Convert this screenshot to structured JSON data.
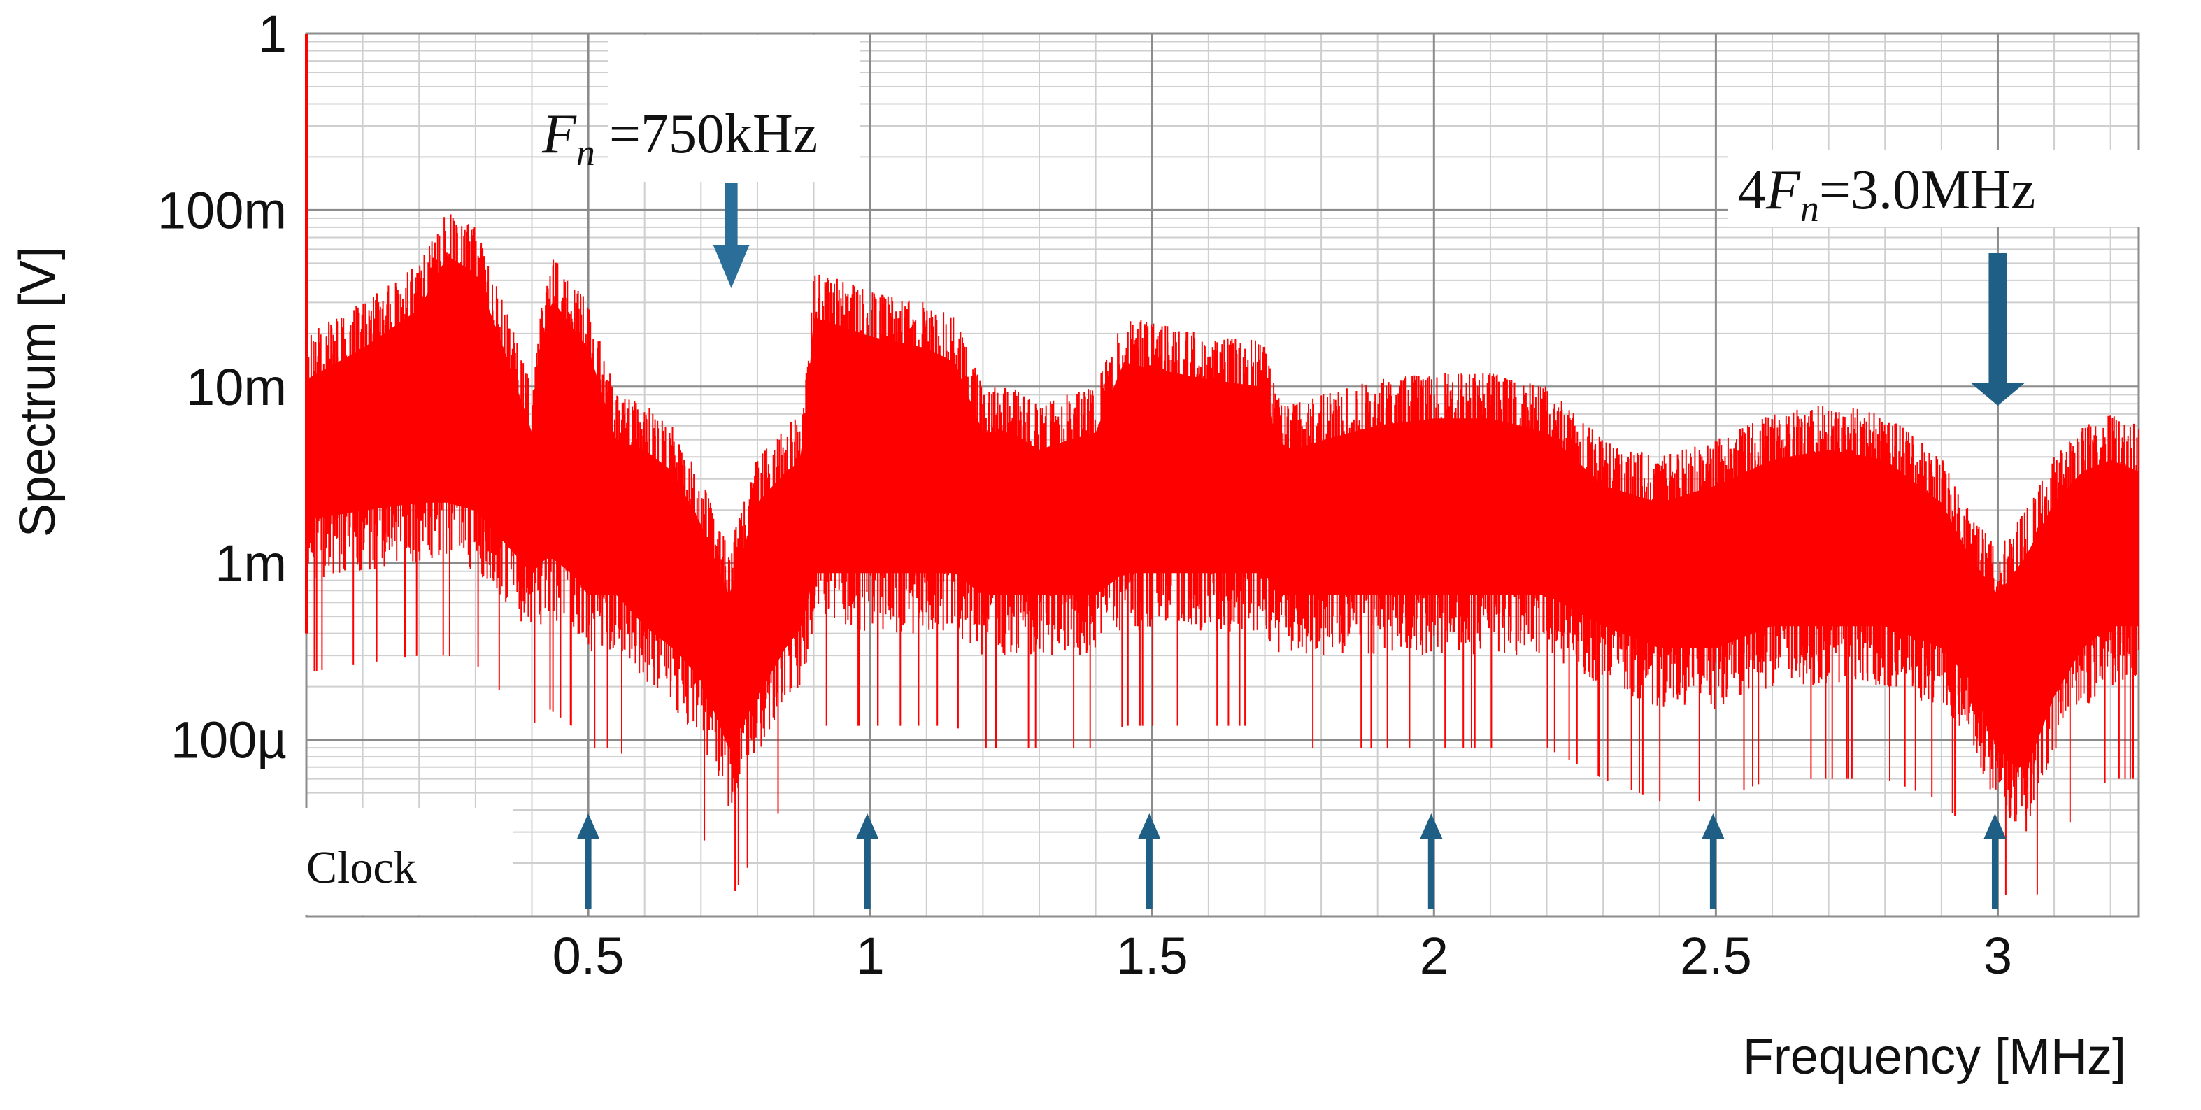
{
  "chart_data": {
    "type": "line",
    "title": "",
    "xlabel": "Frequency [MHz]",
    "ylabel": "Spectrum [V]",
    "x_range": [
      0,
      3.25
    ],
    "y_range": [
      1e-05,
      1
    ],
    "y_scale": "log",
    "grid": true,
    "x_ticks": [
      {
        "value": 0.5,
        "label": "0.5"
      },
      {
        "value": 1,
        "label": "1"
      },
      {
        "value": 1.5,
        "label": "1.5"
      },
      {
        "value": 2,
        "label": "2"
      },
      {
        "value": 2.5,
        "label": "2.5"
      },
      {
        "value": 3,
        "label": "3"
      }
    ],
    "y_ticks": [
      {
        "value": 1,
        "label": "1"
      },
      {
        "value": 0.1,
        "label": "100m"
      },
      {
        "value": 0.01,
        "label": "10m"
      },
      {
        "value": 0.001,
        "label": "1m"
      },
      {
        "value": 0.0001,
        "label": "100µ"
      }
    ],
    "series": [
      {
        "color": "#ff0000",
        "envelope_x": [
          0,
          0.1,
          0.2,
          0.25,
          0.3,
          0.35,
          0.4,
          0.43,
          0.47,
          0.5,
          0.55,
          0.6,
          0.65,
          0.7,
          0.75,
          0.8,
          0.85,
          0.88,
          0.9,
          0.95,
          1.0,
          1.1,
          1.15,
          1.2,
          1.25,
          1.3,
          1.35,
          1.4,
          1.45,
          1.5,
          1.6,
          1.7,
          1.72,
          1.75,
          1.8,
          1.9,
          2.0,
          2.1,
          2.2,
          2.3,
          2.4,
          2.5,
          2.6,
          2.7,
          2.8,
          2.9,
          2.95,
          3.0,
          3.05,
          3.1,
          3.15,
          3.2,
          3.25
        ],
        "envelope_upper": [
          0.02,
          0.03,
          0.05,
          0.1,
          0.08,
          0.03,
          0.01,
          0.06,
          0.04,
          0.03,
          0.009,
          0.008,
          0.006,
          0.003,
          0.0012,
          0.004,
          0.006,
          0.007,
          0.045,
          0.04,
          0.035,
          0.03,
          0.025,
          0.01,
          0.01,
          0.008,
          0.009,
          0.01,
          0.025,
          0.023,
          0.02,
          0.018,
          0.009,
          0.008,
          0.009,
          0.011,
          0.012,
          0.012,
          0.01,
          0.005,
          0.004,
          0.005,
          0.007,
          0.008,
          0.007,
          0.004,
          0.002,
          0.0012,
          0.002,
          0.004,
          0.006,
          0.007,
          0.006
        ],
        "envelope_lower": [
          0.0008,
          0.0009,
          0.001,
          0.001,
          0.0009,
          0.0006,
          0.0004,
          0.0005,
          0.0004,
          0.0003,
          0.0003,
          0.0002,
          0.00015,
          0.0001,
          4e-05,
          8e-05,
          0.00015,
          0.0002,
          0.0004,
          0.0004,
          0.0004,
          0.0004,
          0.0004,
          0.0003,
          0.0003,
          0.0003,
          0.0003,
          0.0003,
          0.0004,
          0.0004,
          0.0004,
          0.0004,
          0.0003,
          0.0003,
          0.0003,
          0.0003,
          0.0003,
          0.0003,
          0.0003,
          0.0002,
          0.00015,
          0.00015,
          0.0002,
          0.0002,
          0.0002,
          0.00015,
          0.0001,
          4e-05,
          3e-05,
          8e-05,
          0.00015,
          0.0002,
          0.0002
        ]
      }
    ],
    "annotations": [
      {
        "type": "arrow-down",
        "x": 0.75,
        "label_main": "F",
        "label_sub": "n",
        "label_rest": " =750kHz",
        "label_prefix": ""
      },
      {
        "type": "arrow-down",
        "x": 3.0,
        "label_main": "F",
        "label_sub": "n",
        "label_rest": "=3.0MHz",
        "label_prefix": "4"
      }
    ],
    "clock": {
      "label": "Clock",
      "markers": [
        0.5,
        1,
        1.5,
        2,
        2.5,
        3
      ]
    }
  }
}
